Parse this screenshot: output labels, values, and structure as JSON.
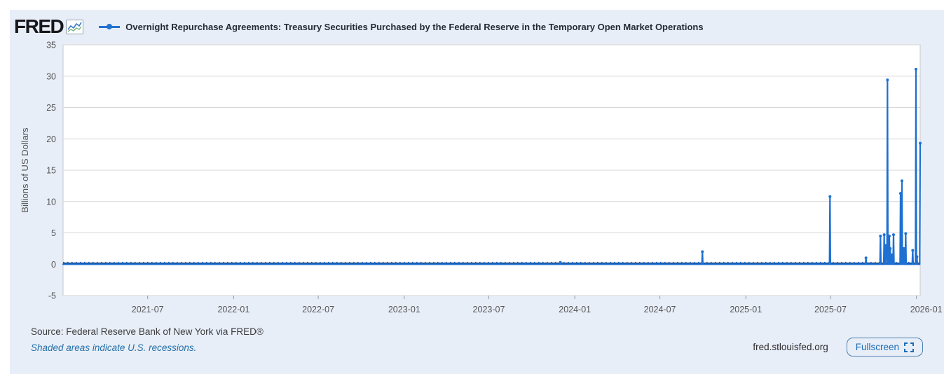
{
  "header": {
    "brand": "FRED",
    "title": "Overnight Repurchase Agreements: Treasury Securities Purchased by the Federal Reserve in the Temporary Open Market Operations"
  },
  "footer": {
    "source": "Source: Federal Reserve Bank of New York via FRED®",
    "recession_note": "Shaded areas indicate U.S. recessions.",
    "site": "fred.stlouisfed.org",
    "fullscreen_label": "Fullscreen"
  },
  "icons": {
    "brand_icon": "line-chart-icon",
    "legend_marker": "series-line-marker",
    "fullscreen": "fullscreen-icon"
  },
  "colors": {
    "widget_bg": "#e8eef8",
    "plot_bg": "#ffffff",
    "plot_border": "#c9c9c9",
    "grid": "#d7d7d7",
    "series": "#1e70d2",
    "baseline_dark": "#15396b",
    "zero_line": "#111111",
    "axis_text": "#555555",
    "tick_mark": "#999999"
  },
  "chart_data": {
    "type": "line",
    "title": "Overnight Repurchase Agreements: Treasury Securities Purchased by the Federal Reserve in the Temporary Open Market Operations",
    "xlabel": "",
    "ylabel": "Billions of US Dollars",
    "ylim": [
      -5,
      35
    ],
    "yticks": [
      -5,
      0,
      5,
      10,
      15,
      20,
      25,
      30,
      35
    ],
    "x_start": "2021-01-01",
    "x_end": "2026-01-09",
    "xticks": [
      {
        "label": "2021-07",
        "date": "2021-07-01"
      },
      {
        "label": "2022-01",
        "date": "2022-01-01"
      },
      {
        "label": "2022-07",
        "date": "2022-07-01"
      },
      {
        "label": "2023-01",
        "date": "2023-01-01"
      },
      {
        "label": "2023-07",
        "date": "2023-07-01"
      },
      {
        "label": "2024-01",
        "date": "2024-01-01"
      },
      {
        "label": "2024-07",
        "date": "2024-07-01"
      },
      {
        "label": "2025-01",
        "date": "2025-01-01"
      },
      {
        "label": "2025-07",
        "date": "2025-07-01"
      },
      {
        "label": "2026-01",
        "date": "2026-01-01"
      }
    ],
    "grid": true,
    "legend_position": "top",
    "baseline": {
      "value": 0.0,
      "start": "2021-01-01",
      "end": "2026-01-09"
    },
    "spikes": [
      [
        "2023-12-01",
        0.3
      ],
      [
        "2024-09-30",
        2.0
      ],
      [
        "2025-06-30",
        10.8
      ],
      [
        "2025-09-15",
        1.0
      ],
      [
        "2025-10-16",
        4.5
      ],
      [
        "2025-10-24",
        4.7
      ],
      [
        "2025-10-27",
        2.6
      ],
      [
        "2025-10-28",
        3.0
      ],
      [
        "2025-10-29",
        2.7
      ],
      [
        "2025-10-31",
        29.4
      ],
      [
        "2025-11-04",
        4.5
      ],
      [
        "2025-11-06",
        2.5
      ],
      [
        "2025-11-10",
        1.5
      ],
      [
        "2025-11-13",
        4.7
      ],
      [
        "2025-11-28",
        11.3
      ],
      [
        "2025-12-01",
        13.3
      ],
      [
        "2025-12-05",
        2.5
      ],
      [
        "2025-12-09",
        4.9
      ],
      [
        "2025-12-24",
        2.2
      ],
      [
        "2025-12-31",
        31.1
      ],
      [
        "2026-01-02",
        1.2
      ],
      [
        "2026-01-09",
        19.3
      ]
    ]
  }
}
